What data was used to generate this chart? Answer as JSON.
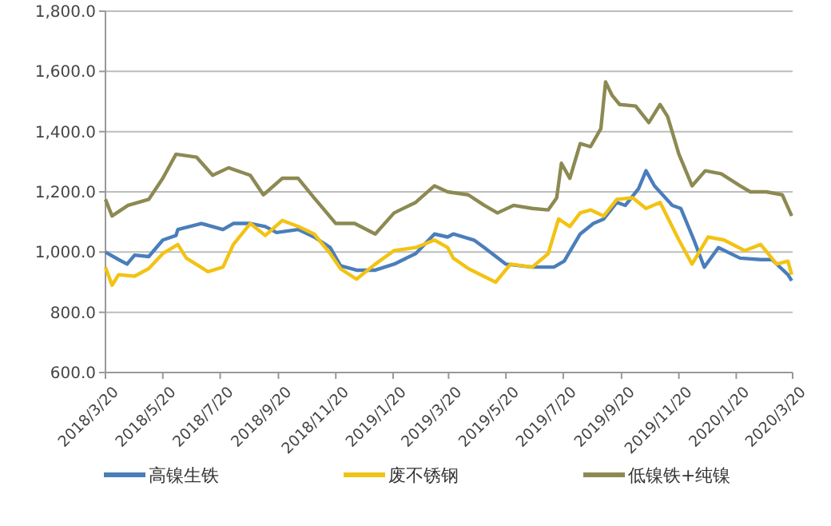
{
  "chart_data": {
    "type": "line",
    "legend": "bottom",
    "grid": "y",
    "marker": "none",
    "line_style": "solid",
    "ylim": [
      600,
      1800
    ],
    "yticks": [
      {
        "value": 600,
        "label": "600.0"
      },
      {
        "value": 800,
        "label": "800.0"
      },
      {
        "value": 1000,
        "label": "1,000.0"
      },
      {
        "value": 1200,
        "label": "1,200.0"
      },
      {
        "value": 1400,
        "label": "1,400.0"
      },
      {
        "value": 1600,
        "label": "1,600.0"
      },
      {
        "value": 1800,
        "label": "1,800.0"
      }
    ],
    "xlim": [
      "2018-03-20",
      "2020-03-20"
    ],
    "xticks": [
      {
        "value": "2018-03-20",
        "label": "2018/3/20"
      },
      {
        "value": "2018-05-20",
        "label": "2018/5/20"
      },
      {
        "value": "2018-07-20",
        "label": "2018/7/20"
      },
      {
        "value": "2018-09-20",
        "label": "2018/9/20"
      },
      {
        "value": "2018-11-20",
        "label": "2018/11/20"
      },
      {
        "value": "2019-01-20",
        "label": "2019/1/20"
      },
      {
        "value": "2019-03-20",
        "label": "2019/3/20"
      },
      {
        "value": "2019-05-20",
        "label": "2019/5/20"
      },
      {
        "value": "2019-07-20",
        "label": "2019/7/20"
      },
      {
        "value": "2019-09-20",
        "label": "2019/9/20"
      },
      {
        "value": "2019-11-20",
        "label": "2019/11/20"
      },
      {
        "value": "2020-01-20",
        "label": "2020/1/20"
      },
      {
        "value": "2020-03-20",
        "label": "2020/3/20"
      }
    ],
    "series": [
      {
        "name": "高镍生铁",
        "color": "#4a7ebb",
        "x": [
          "2018-03-20",
          "2018-04-03",
          "2018-04-12",
          "2018-04-20",
          "2018-05-05",
          "2018-05-20",
          "2018-06-03",
          "2018-06-05",
          "2018-06-30",
          "2018-07-23",
          "2018-08-03",
          "2018-08-21",
          "2018-09-06",
          "2018-09-18",
          "2018-10-11",
          "2018-10-28",
          "2018-11-14",
          "2018-11-25",
          "2018-12-12",
          "2019-01-01",
          "2019-01-21",
          "2019-02-13",
          "2019-03-05",
          "2019-03-19",
          "2019-03-25",
          "2019-04-16",
          "2019-04-27",
          "2019-05-20",
          "2019-06-17",
          "2019-07-10",
          "2019-07-21",
          "2019-08-07",
          "2019-08-21",
          "2019-09-01",
          "2019-09-15",
          "2019-09-24",
          "2019-10-08",
          "2019-10-16",
          "2019-10-25",
          "2019-11-13",
          "2019-11-22",
          "2019-12-06",
          "2019-12-17",
          "2020-01-01",
          "2020-01-24",
          "2020-02-15",
          "2020-02-27",
          "2020-03-15",
          "2020-03-19"
        ],
        "values": [
          1000,
          975,
          960,
          990,
          985,
          1040,
          1055,
          1075,
          1095,
          1075,
          1095,
          1095,
          1085,
          1065,
          1075,
          1050,
          1015,
          955,
          940,
          940,
          960,
          995,
          1060,
          1050,
          1060,
          1040,
          1015,
          960,
          950,
          950,
          970,
          1060,
          1095,
          1110,
          1165,
          1155,
          1210,
          1270,
          1220,
          1155,
          1145,
          1040,
          950,
          1015,
          980,
          975,
          975,
          925,
          905
        ]
      },
      {
        "name": "废不锈钢",
        "color": "#f2c314",
        "x": [
          "2018-03-20",
          "2018-03-27",
          "2018-04-03",
          "2018-04-20",
          "2018-05-05",
          "2018-05-20",
          "2018-06-05",
          "2018-06-14",
          "2018-07-07",
          "2018-07-23",
          "2018-08-03",
          "2018-08-21",
          "2018-09-06",
          "2018-09-24",
          "2018-10-11",
          "2018-10-28",
          "2018-11-14",
          "2018-11-25",
          "2018-12-12",
          "2019-01-01",
          "2019-01-21",
          "2019-02-13",
          "2019-03-05",
          "2019-03-19",
          "2019-03-25",
          "2019-04-10",
          "2019-05-09",
          "2019-05-25",
          "2019-06-17",
          "2019-07-04",
          "2019-07-15",
          "2019-07-27",
          "2019-08-07",
          "2019-08-18",
          "2019-09-01",
          "2019-09-15",
          "2019-10-02",
          "2019-10-16",
          "2019-10-31",
          "2019-11-20",
          "2019-12-04",
          "2019-12-21",
          "2020-01-07",
          "2020-01-29",
          "2020-02-15",
          "2020-03-03",
          "2020-03-15",
          "2020-03-19"
        ],
        "values": [
          950,
          890,
          925,
          920,
          945,
          995,
          1025,
          980,
          935,
          950,
          1025,
          1095,
          1055,
          1105,
          1085,
          1060,
          995,
          945,
          910,
          960,
          1005,
          1015,
          1040,
          1015,
          980,
          945,
          900,
          960,
          950,
          995,
          1110,
          1085,
          1130,
          1140,
          1120,
          1175,
          1180,
          1145,
          1165,
          1040,
          960,
          1050,
          1040,
          1005,
          1025,
          960,
          970,
          925
        ]
      },
      {
        "name": "低镍铁+纯镍",
        "color": "#8c8a52",
        "x": [
          "2018-03-20",
          "2018-03-27",
          "2018-04-13",
          "2018-05-05",
          "2018-05-20",
          "2018-06-03",
          "2018-06-25",
          "2018-07-12",
          "2018-07-29",
          "2018-08-21",
          "2018-09-04",
          "2018-09-24",
          "2018-10-11",
          "2018-10-28",
          "2018-11-20",
          "2018-12-10",
          "2019-01-01",
          "2019-01-21",
          "2019-02-13",
          "2019-03-05",
          "2019-03-19",
          "2019-04-10",
          "2019-04-27",
          "2019-05-11",
          "2019-05-28",
          "2019-06-17",
          "2019-07-04",
          "2019-07-13",
          "2019-07-18",
          "2019-07-27",
          "2019-08-07",
          "2019-08-18",
          "2019-08-29",
          "2019-09-03",
          "2019-09-10",
          "2019-09-18",
          "2019-10-05",
          "2019-10-19",
          "2019-10-31",
          "2019-11-08",
          "2019-11-20",
          "2019-12-04",
          "2019-12-18",
          "2020-01-04",
          "2020-01-24",
          "2020-02-04",
          "2020-02-21",
          "2020-03-09",
          "2020-03-19"
        ],
        "values": [
          1175,
          1120,
          1155,
          1175,
          1245,
          1325,
          1315,
          1255,
          1280,
          1255,
          1190,
          1245,
          1245,
          1180,
          1095,
          1095,
          1060,
          1130,
          1165,
          1220,
          1200,
          1190,
          1155,
          1130,
          1155,
          1145,
          1140,
          1180,
          1295,
          1245,
          1360,
          1350,
          1410,
          1565,
          1520,
          1490,
          1485,
          1430,
          1490,
          1450,
          1325,
          1220,
          1270,
          1260,
          1220,
          1200,
          1200,
          1190,
          1120
        ]
      }
    ]
  }
}
